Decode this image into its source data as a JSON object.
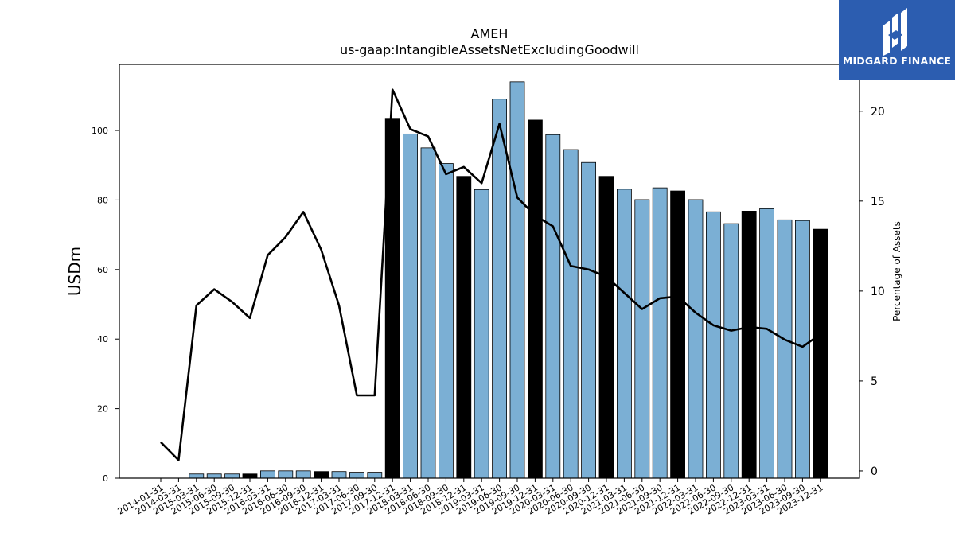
{
  "brand": {
    "name": "MIDGARD FINANCE",
    "background": "#2c5db0"
  },
  "chart_data": {
    "type": "bar",
    "title": "AMEH",
    "subtitle": "us-gaap:IntangibleAssetsNetExcludingGoodwill",
    "ylabel": "USDm",
    "y2label": "Percentage of Assets",
    "ylim": [
      0,
      119
    ],
    "y2lim": [
      -0.4,
      22.6
    ],
    "yticks": [
      0,
      20,
      40,
      60,
      80,
      100
    ],
    "y2ticks": [
      0,
      5,
      10,
      15,
      20
    ],
    "categories": [
      "2014-01-31",
      "2014-03-31",
      "2015-03-31",
      "2015-06-30",
      "2015-09-30",
      "2015-12-31",
      "2016-03-31",
      "2016-06-30",
      "2016-09-30",
      "2016-12-31",
      "2017-03-31",
      "2017-06-30",
      "2017-09-30",
      "2017-12-31",
      "2018-03-31",
      "2018-06-30",
      "2018-09-30",
      "2018-12-31",
      "2019-03-31",
      "2019-06-30",
      "2019-09-30",
      "2019-12-31",
      "2020-03-31",
      "2020-06-30",
      "2020-09-30",
      "2020-12-31",
      "2021-03-31",
      "2021-06-30",
      "2021-09-30",
      "2021-12-31",
      "2022-03-31",
      "2022-06-30",
      "2022-09-30",
      "2022-12-31",
      "2023-03-31",
      "2023-06-30",
      "2023-09-30",
      "2023-12-31"
    ],
    "series": [
      {
        "kind": "bar",
        "axis": "left",
        "values": [
          0,
          0,
          1.2,
          1.2,
          1.2,
          1.2,
          2.1,
          2.1,
          2.1,
          1.9,
          1.9,
          1.7,
          1.7,
          103.5,
          99,
          95,
          90.5,
          86.8,
          83,
          109,
          114,
          103,
          98.8,
          94.5,
          90.8,
          86.8,
          83.1,
          80.1,
          83.5,
          82.6,
          80.1,
          76.6,
          73.2,
          76.8,
          77.5,
          74.3,
          74.1,
          71.6
        ],
        "highlight": [
          false,
          false,
          false,
          false,
          false,
          true,
          false,
          false,
          false,
          true,
          false,
          false,
          false,
          true,
          false,
          false,
          false,
          true,
          false,
          false,
          false,
          true,
          false,
          false,
          false,
          true,
          false,
          false,
          false,
          true,
          false,
          false,
          false,
          true,
          false,
          false,
          false,
          true
        ],
        "color": "#7bafd4",
        "highlight_color": "#000000"
      },
      {
        "kind": "line",
        "axis": "right",
        "values": [
          1.6,
          0.6,
          9.2,
          10.1,
          9.4,
          8.5,
          12.0,
          13.0,
          14.4,
          12.3,
          9.2,
          4.2,
          4.2,
          21.2,
          19.0,
          18.6,
          16.5,
          16.9,
          16.0,
          19.3,
          15.2,
          14.2,
          13.6,
          11.4,
          11.2,
          10.8,
          9.9,
          9.0,
          9.6,
          9.7,
          8.8,
          8.1,
          7.8,
          8.0,
          7.9,
          7.3,
          6.9,
          7.6
        ],
        "color": "#000000"
      }
    ]
  }
}
